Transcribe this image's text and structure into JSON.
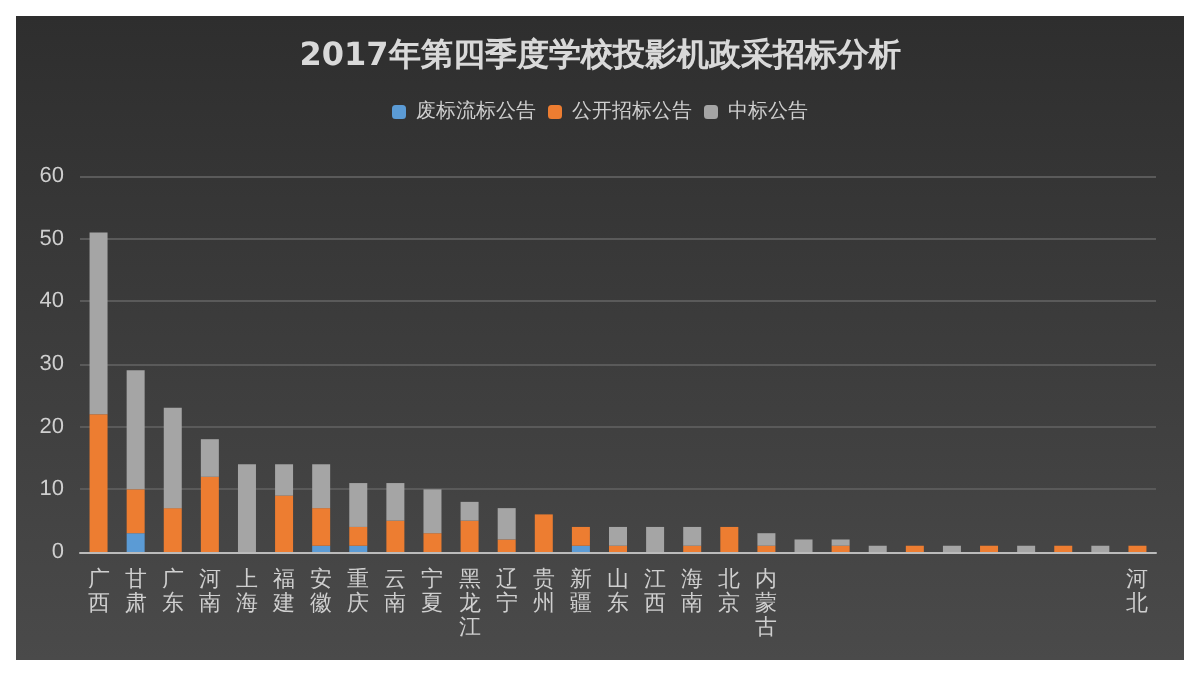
{
  "chart_data": {
    "type": "bar",
    "title": "2017年第四季度学校投影机政采招标分析",
    "stacked": true,
    "legend": "top",
    "grid": "y",
    "ylim": [
      0,
      60
    ],
    "yticks": [
      0,
      10,
      20,
      30,
      40,
      50,
      60
    ],
    "categories": [
      "广西",
      "甘肃",
      "广东",
      "河南",
      "上海",
      "福建",
      "安徽",
      "重庆",
      "云南",
      "宁夏",
      "黑龙江",
      "辽宁",
      "贵州",
      "新疆",
      "山东",
      "江西",
      "海南",
      "北京",
      "内蒙古",
      null,
      null,
      null,
      null,
      null,
      null,
      null,
      null,
      null,
      "河北"
    ],
    "series": [
      {
        "name": "废标流标公告",
        "color": "#5b9bd5",
        "values": [
          null,
          3,
          null,
          null,
          null,
          null,
          1,
          1,
          null,
          null,
          null,
          null,
          null,
          1,
          null,
          null,
          null,
          null,
          null,
          null,
          null,
          null,
          null,
          null,
          null,
          null,
          null,
          null,
          null
        ]
      },
      {
        "name": "公开招标公告",
        "color": "#ed7d31",
        "values": [
          22,
          7,
          7,
          12,
          null,
          9,
          6,
          3,
          5,
          3,
          5,
          2,
          6,
          3,
          1,
          null,
          1,
          4,
          1,
          null,
          1,
          null,
          1,
          null,
          1,
          null,
          1,
          null,
          1
        ]
      },
      {
        "name": "中标公告",
        "color": "#a5a5a5",
        "values": [
          29,
          19,
          16,
          6,
          14,
          5,
          7,
          7,
          6,
          7,
          3,
          5,
          null,
          null,
          3,
          4,
          3,
          null,
          2,
          2,
          1,
          1,
          null,
          1,
          null,
          1,
          null,
          1,
          null
        ]
      }
    ]
  }
}
